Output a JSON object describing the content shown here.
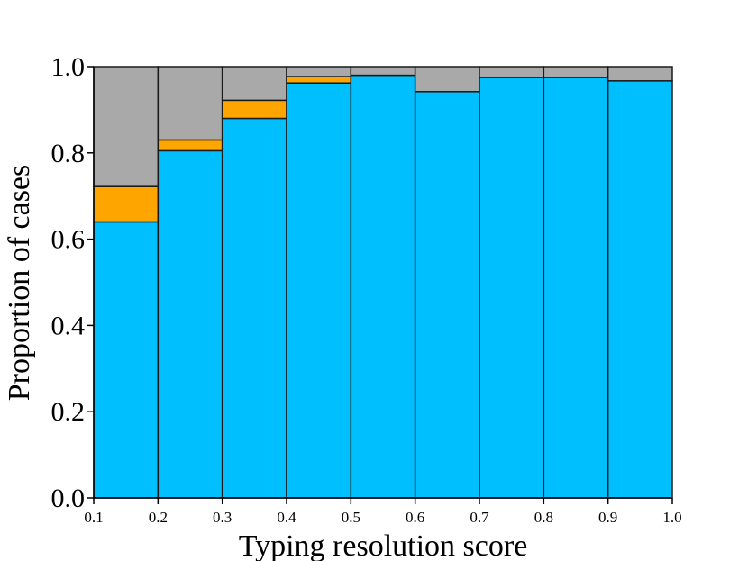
{
  "chart_data": {
    "type": "bar",
    "stacked": true,
    "title": "",
    "xlabel": "Typing resolution score",
    "ylabel": "Proportion of cases",
    "x_edges": [
      0.1,
      0.2,
      0.3,
      0.4,
      0.5,
      0.6,
      0.7,
      0.8,
      0.9,
      1.0
    ],
    "x_tick_labels": [
      "0.1",
      "0.2",
      "0.3",
      "0.4",
      "0.5",
      "0.6",
      "0.7",
      "0.8",
      "0.9",
      "1.0"
    ],
    "y_tick_labels": [
      "0.0",
      "0.2",
      "0.4",
      "0.6",
      "0.8",
      "1.0"
    ],
    "xlim": [
      0.1,
      1.0
    ],
    "ylim": [
      0.0,
      1.0
    ],
    "grid": false,
    "legend": "none",
    "series": [
      {
        "color": "#00BFFF",
        "values": [
          0.64,
          0.805,
          0.88,
          0.962,
          0.98,
          0.942,
          0.975,
          0.975,
          0.967
        ]
      },
      {
        "color": "#FFA500",
        "values": [
          0.082,
          0.025,
          0.042,
          0.015,
          0.0,
          0.0,
          0.0,
          0.0,
          0.0
        ]
      },
      {
        "color": "#A9A9A9",
        "values": [
          0.278,
          0.17,
          0.078,
          0.023,
          0.02,
          0.058,
          0.025,
          0.025,
          0.033
        ]
      }
    ]
  }
}
